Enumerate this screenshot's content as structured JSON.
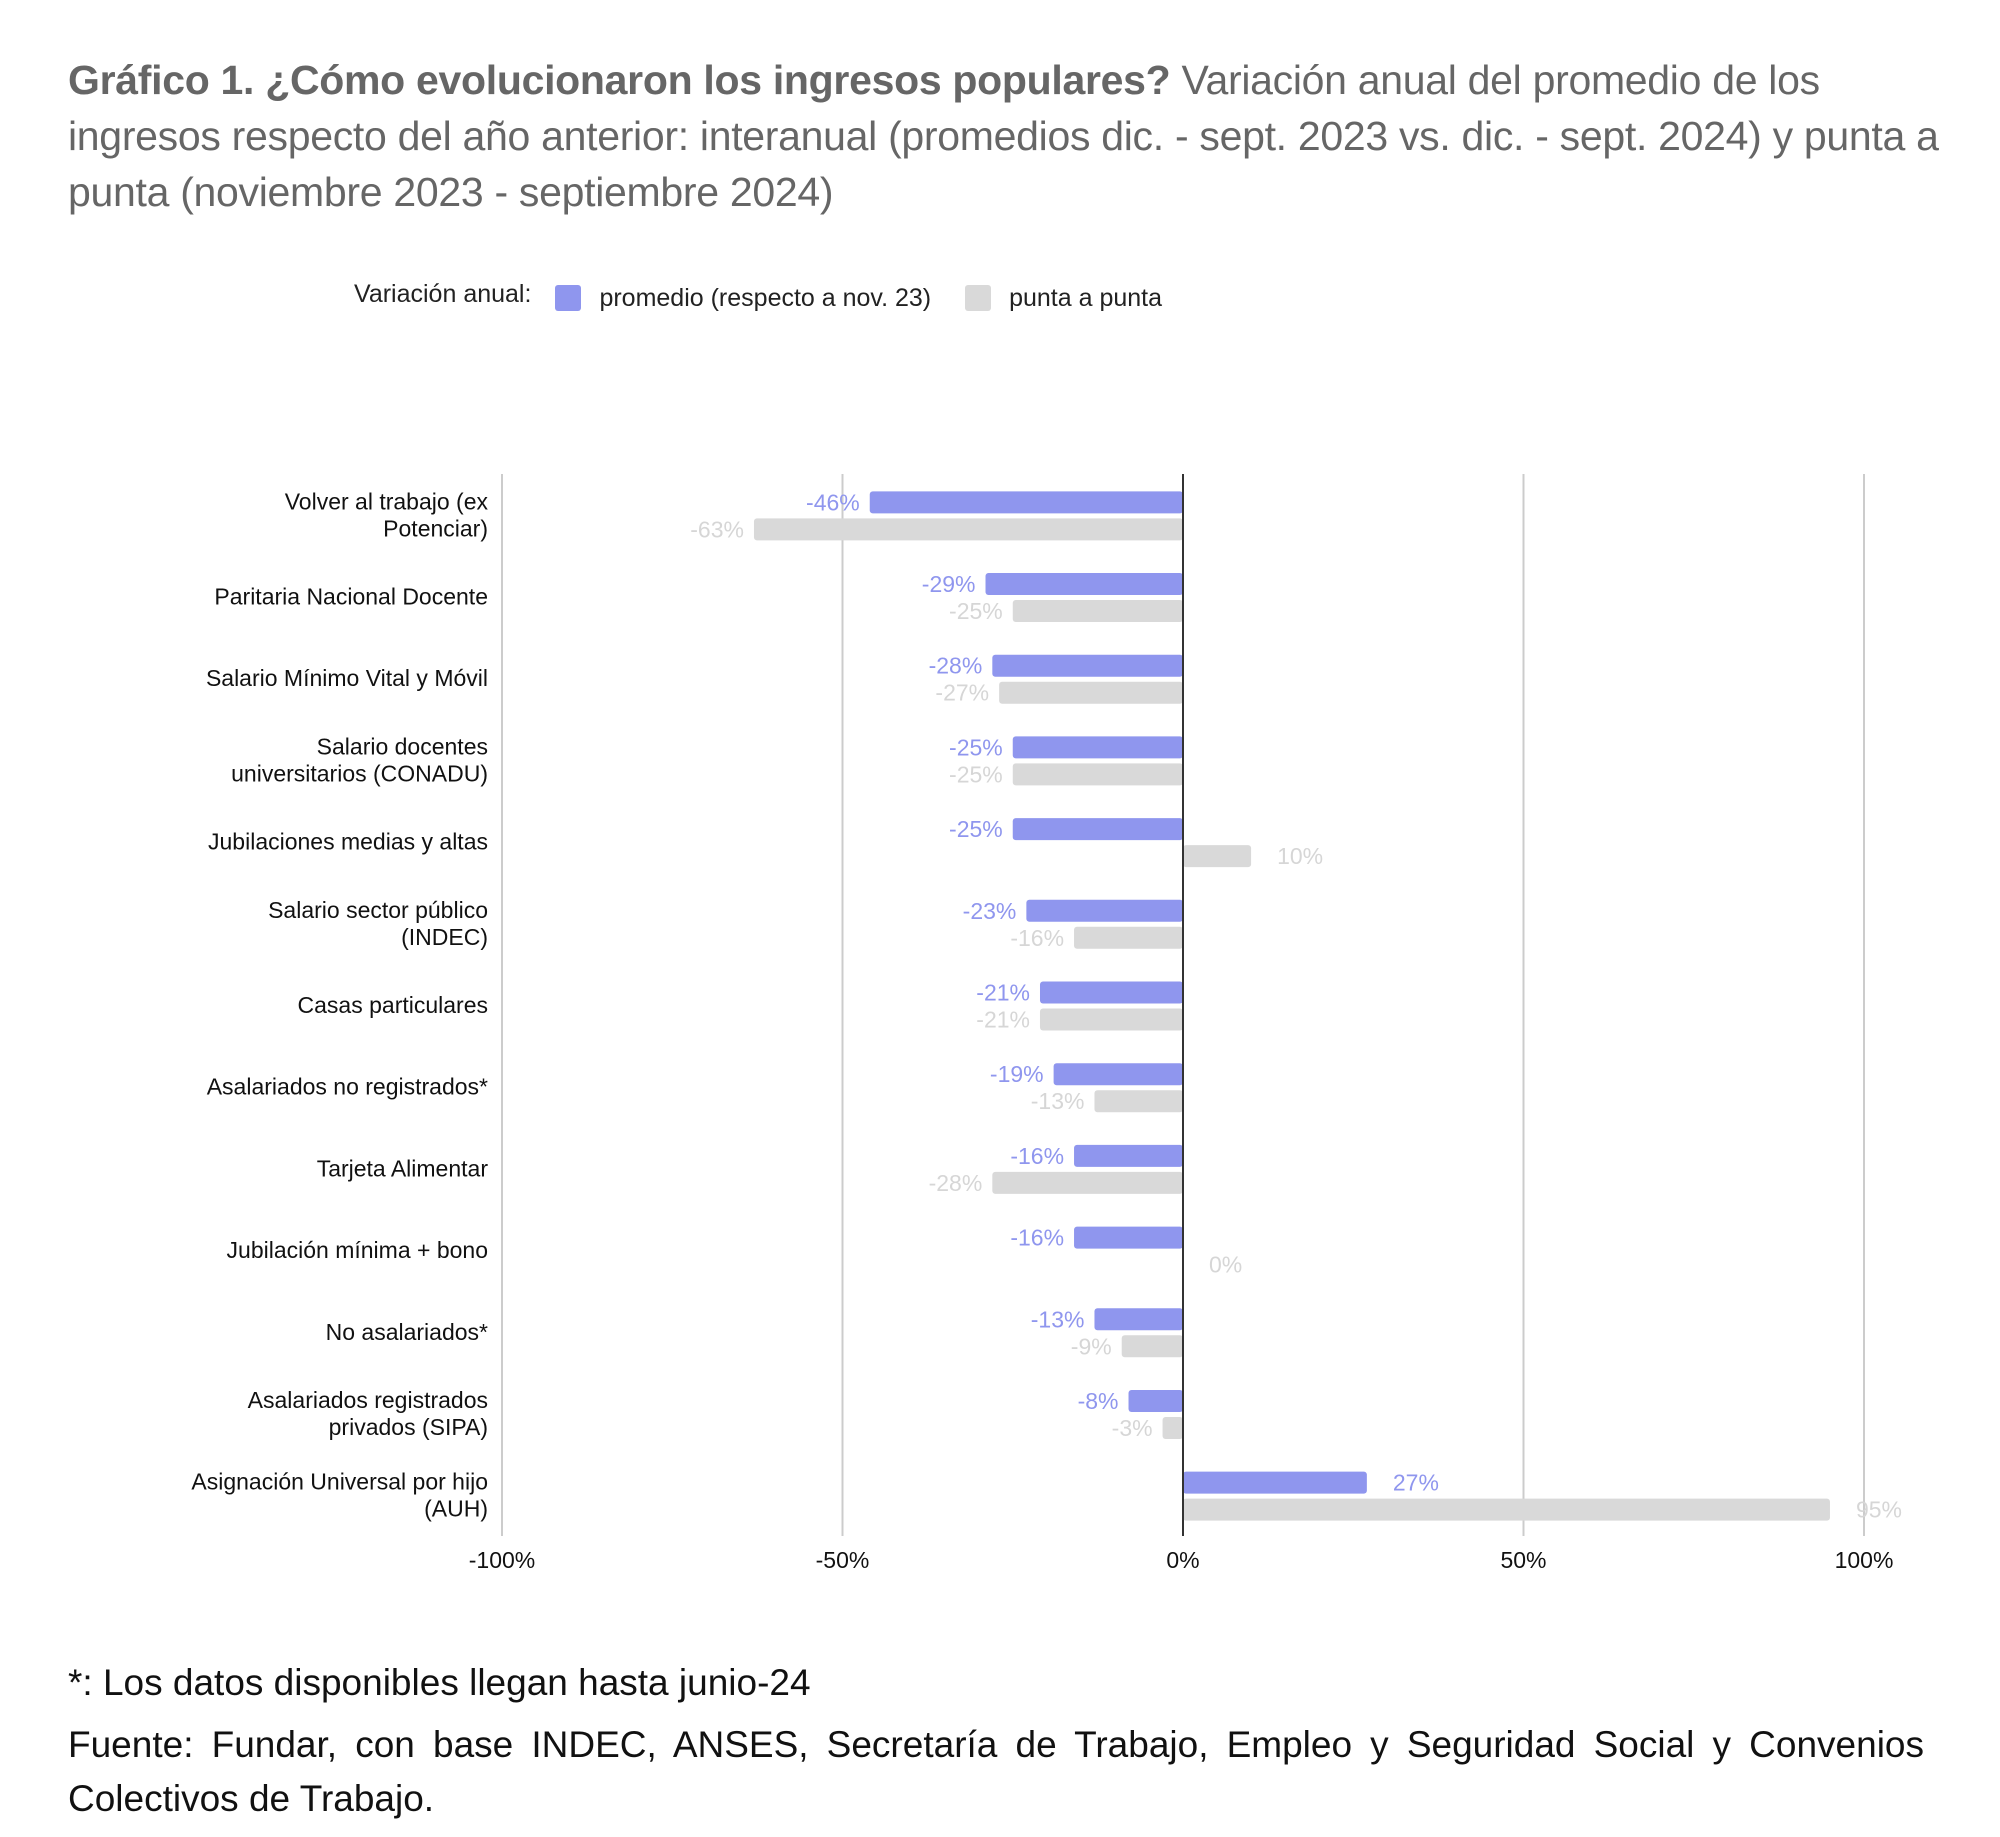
{
  "title": {
    "bold": "Gráfico 1. ¿Cómo evolucionaron los ingresos populares?",
    "rest": " Variación anual del promedio de los ingresos respecto del año anterior: interanual (promedios dic. - sept. 2023 vs. dic. - sept. 2024) y punta a punta (noviembre 2023 - septiembre 2024)"
  },
  "legend": {
    "label": "Variación anual:",
    "items": [
      {
        "name": "promedio (respecto a nov. 23)",
        "color": "#8f96ee"
      },
      {
        "name": "punta a punta",
        "color": "#d9d9d9"
      }
    ]
  },
  "footnote": "*: Los datos disponibles llegan hasta junio-24",
  "source": "Fuente: Fundar, con base INDEC, ANSES, Secretaría de Trabajo, Empleo y Seguridad Social y Convenios Colectivos de Trabajo.",
  "chart_data": {
    "type": "bar",
    "orientation": "horizontal",
    "title": "¿Cómo evolucionaron los ingresos populares?",
    "xlabel": "",
    "ylabel": "",
    "xlim": [
      -100,
      100
    ],
    "x_ticks": [
      "-100%",
      "-50%",
      "0%",
      "50%",
      "100%"
    ],
    "grid": true,
    "legend_position": "top",
    "categories": [
      [
        "Volver al trabajo (ex",
        "Potenciar)"
      ],
      [
        "Paritaria Nacional Docente"
      ],
      [
        "Salario Mínimo Vital y Móvil"
      ],
      [
        "Salario docentes",
        "universitarios (CONADU)"
      ],
      [
        "Jubilaciones medias y altas"
      ],
      [
        "Salario sector público",
        "(INDEC)"
      ],
      [
        "Casas particulares"
      ],
      [
        "Asalariados no registrados*"
      ],
      [
        "Tarjeta Alimentar"
      ],
      [
        "Jubilación mínima + bono"
      ],
      [
        "No asalariados*"
      ],
      [
        "Asalariados registrados",
        "privados (SIPA)"
      ],
      [
        "Asignación Universal por hijo",
        "(AUH)"
      ]
    ],
    "series": [
      {
        "name": "promedio (respecto a nov. 23)",
        "color": "#8f96ee",
        "label_color": "#8f96ee",
        "values": [
          -46,
          -29,
          -28,
          -25,
          -25,
          -23,
          -21,
          -19,
          -16,
          -16,
          -13,
          -8,
          27
        ]
      },
      {
        "name": "punta a punta",
        "color": "#d9d9d9",
        "label_color": "#d6d6d6",
        "values": [
          -63,
          -25,
          -27,
          -25,
          10,
          -16,
          -21,
          -13,
          -28,
          0,
          -9,
          -3,
          95
        ]
      }
    ]
  }
}
